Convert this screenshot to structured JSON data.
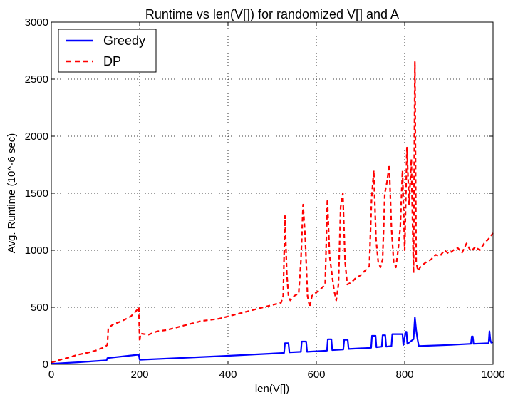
{
  "chart_data": {
    "type": "line",
    "title": "Runtime vs len(V[]) for randomized V[] and A",
    "xlabel": "len(V[])",
    "ylabel": "Avg. Runtime (10^-6 sec)",
    "xlim": [
      0,
      1000
    ],
    "ylim": [
      0,
      3000
    ],
    "xticks": [
      "0",
      "200",
      "400",
      "600",
      "800",
      "1000"
    ],
    "yticks": [
      "0",
      "500",
      "1000",
      "1500",
      "2000",
      "2500",
      "3000"
    ],
    "grid": true,
    "legend_position": "top-left",
    "series": [
      {
        "name": "Greedy",
        "color": "#0000ff",
        "style": "solid",
        "x": [
          0,
          60,
          125,
          127,
          198,
          200,
          400,
          527,
          529,
          537,
          539,
          565,
          567,
          577,
          579,
          624,
          626,
          634,
          636,
          661,
          663,
          671,
          673,
          724,
          726,
          734,
          736,
          748,
          750,
          756,
          758,
          770,
          772,
          795,
          797,
          802,
          804,
          806,
          820,
          823,
          826,
          829,
          832,
          900,
          950,
          952,
          954,
          956,
          990,
          992,
          994,
          996,
          1000
        ],
        "y": [
          5,
          18,
          35,
          55,
          85,
          40,
          75,
          100,
          185,
          185,
          105,
          110,
          200,
          200,
          110,
          120,
          220,
          220,
          125,
          130,
          215,
          215,
          135,
          145,
          250,
          250,
          150,
          155,
          255,
          255,
          155,
          160,
          265,
          265,
          170,
          285,
          285,
          180,
          220,
          410,
          300,
          220,
          160,
          170,
          180,
          245,
          245,
          180,
          185,
          290,
          210,
          190,
          195
        ]
      },
      {
        "name": "DP",
        "color": "#ff0000",
        "style": "dashed",
        "x": [
          0,
          20,
          40,
          60,
          80,
          100,
          120,
          127,
          129,
          140,
          160,
          180,
          195,
          198,
          200,
          202,
          220,
          240,
          260,
          280,
          300,
          320,
          340,
          360,
          380,
          400,
          420,
          440,
          460,
          480,
          500,
          520,
          525,
          529,
          533,
          537,
          541,
          550,
          560,
          565,
          570,
          575,
          580,
          585,
          590,
          600,
          610,
          620,
          625,
          630,
          635,
          640,
          645,
          650,
          655,
          660,
          665,
          670,
          680,
          690,
          700,
          710,
          720,
          725,
          730,
          735,
          740,
          745,
          750,
          755,
          760,
          765,
          770,
          775,
          780,
          785,
          790,
          795,
          800,
          805,
          810,
          815,
          820,
          823,
          826,
          830,
          835,
          840,
          850,
          860,
          870,
          880,
          890,
          900,
          910,
          920,
          930,
          940,
          950,
          960,
          970,
          980,
          990,
          1000
        ],
        "y": [
          15,
          40,
          60,
          85,
          100,
          120,
          150,
          170,
          320,
          350,
          380,
          420,
          480,
          500,
          200,
          270,
          260,
          290,
          300,
          320,
          340,
          360,
          380,
          390,
          400,
          420,
          440,
          460,
          480,
          500,
          520,
          540,
          600,
          1300,
          800,
          600,
          560,
          600,
          620,
          900,
          1400,
          1100,
          600,
          500,
          600,
          630,
          660,
          700,
          1450,
          950,
          800,
          650,
          560,
          700,
          1380,
          1500,
          900,
          700,
          720,
          760,
          780,
          820,
          860,
          1450,
          1700,
          1100,
          900,
          850,
          920,
          1500,
          1600,
          1750,
          1200,
          900,
          850,
          1000,
          1200,
          1700,
          1000,
          1900,
          1400,
          1800,
          800,
          2650,
          900,
          820,
          850,
          870,
          900,
          920,
          960,
          950,
          1000,
          970,
          1000,
          1020,
          980,
          1060,
          990,
          1030,
          1000,
          1060,
          1100,
          1150
        ]
      }
    ]
  }
}
